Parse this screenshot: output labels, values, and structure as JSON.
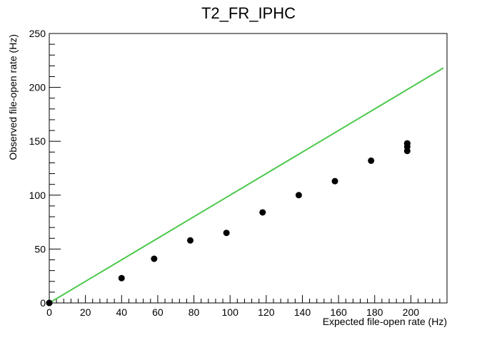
{
  "chart_data": {
    "type": "scatter",
    "title": "T2_FR_IPHC",
    "xlabel": "Expected file-open rate (Hz)",
    "ylabel": "Observed file-open rate (Hz)",
    "xlim": [
      0,
      220
    ],
    "ylim": [
      0,
      250
    ],
    "x_ticks": [
      0,
      20,
      40,
      60,
      80,
      100,
      120,
      140,
      160,
      180,
      200
    ],
    "y_ticks": [
      0,
      50,
      100,
      150,
      200,
      250
    ],
    "grid": false,
    "points": {
      "x": [
        0,
        0,
        40,
        58,
        78,
        98,
        118,
        138,
        158,
        178,
        198,
        198,
        198,
        198
      ],
      "y": [
        0,
        0,
        23,
        41,
        58,
        65,
        84,
        100,
        113,
        132,
        141,
        145,
        148,
        148
      ]
    },
    "reference_line": {
      "x": [
        0,
        218
      ],
      "y": [
        0,
        218
      ],
      "color": "#4cc94c"
    },
    "colors": {
      "points": "#000000",
      "axes": "#000000"
    }
  }
}
